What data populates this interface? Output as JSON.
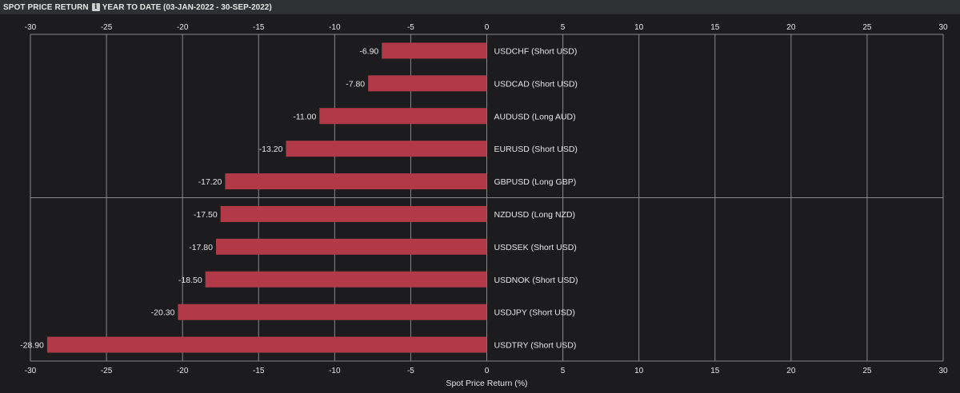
{
  "header": {
    "title": "SPOT PRICE RETURN",
    "info_icon": "info-icon",
    "subtitle": "YEAR TO DATE (03-JAN-2022 - 30-SEP-2022)"
  },
  "colors": {
    "bar": "#b23a48",
    "grid": "#8a8a8a",
    "background": "#1c1c1f"
  },
  "chart_data": {
    "type": "bar",
    "orientation": "horizontal",
    "categories": [
      "USDCHF (Short USD)",
      "USDCAD (Short USD)",
      "AUDUSD (Long AUD)",
      "EURUSD (Short USD)",
      "GBPUSD (Long GBP)",
      "NZDUSD (Long NZD)",
      "USDSEK (Short USD)",
      "USDNOK (Short USD)",
      "USDJPY (Short USD)",
      "USDTRY (Short USD)"
    ],
    "values": [
      -6.9,
      -7.8,
      -11.0,
      -13.2,
      -17.2,
      -17.5,
      -17.8,
      -18.5,
      -20.3,
      -28.9
    ],
    "value_labels": [
      "-6.90",
      "-7.80",
      "-11.00",
      "-13.20",
      "-17.20",
      "-17.50",
      "-17.80",
      "-18.50",
      "-20.30",
      "-28.90"
    ],
    "xlim": [
      -30,
      30
    ],
    "xticks": [
      "-30",
      "-25",
      "-20",
      "-15",
      "-10",
      "-5",
      "0",
      "5",
      "10",
      "15",
      "20",
      "25",
      "30"
    ],
    "xlabel": "Spot Price Return (%)",
    "grid": true,
    "legend": "none"
  }
}
